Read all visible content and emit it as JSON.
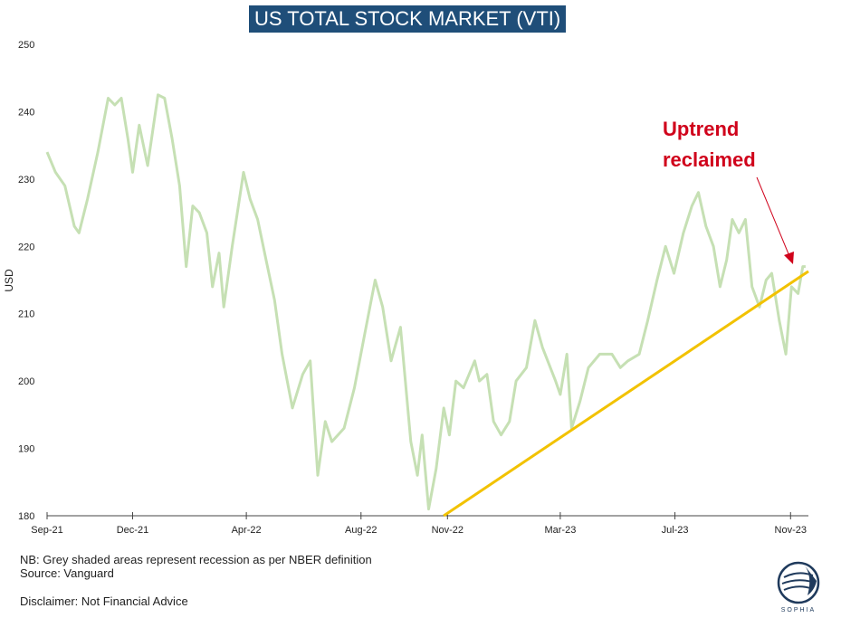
{
  "title": "US TOTAL STOCK MARKET (VTI)",
  "footnotes": {
    "recession_note": "NB: Grey shaded areas represent recession as per NBER definition",
    "source": "Source: Vanguard",
    "disclaimer": "Disclaimer: Not Financial Advice"
  },
  "logo": {
    "icon": "sophia-globe-icon",
    "text": "SOPHIA"
  },
  "colors": {
    "title_bg": "#1f4e79",
    "series": "#c6e0b4",
    "trendline": "#f2c200",
    "annotation": "#d0021b"
  },
  "chart_data": {
    "type": "line",
    "title": "US TOTAL STOCK MARKET (VTI)",
    "ylabel": "USD",
    "xlabel": "",
    "ylim": [
      180,
      250
    ],
    "yticks": [
      180,
      190,
      200,
      210,
      220,
      230,
      240,
      250
    ],
    "xlim": [
      "2021-09-01",
      "2023-11-20"
    ],
    "xticks": [
      {
        "date": "2021-09-01",
        "label": "Sep-21"
      },
      {
        "date": "2021-12-01",
        "label": "Dec-21"
      },
      {
        "date": "2022-04-01",
        "label": "Apr-22"
      },
      {
        "date": "2022-08-01",
        "label": "Aug-22"
      },
      {
        "date": "2022-11-01",
        "label": "Nov-22"
      },
      {
        "date": "2023-03-01",
        "label": "Mar-23"
      },
      {
        "date": "2023-07-01",
        "label": "Jul-23"
      },
      {
        "date": "2023-11-01",
        "label": "Nov-23"
      }
    ],
    "grid": false,
    "series": [
      {
        "values": [
          [
            "2021-09-01",
            234
          ],
          [
            "2021-09-10",
            231
          ],
          [
            "2021-09-20",
            229
          ],
          [
            "2021-09-30",
            223
          ],
          [
            "2021-10-05",
            222
          ],
          [
            "2021-10-14",
            227
          ],
          [
            "2021-10-25",
            234
          ],
          [
            "2021-11-05",
            242
          ],
          [
            "2021-11-12",
            241
          ],
          [
            "2021-11-19",
            242
          ],
          [
            "2021-11-26",
            236
          ],
          [
            "2021-12-01",
            231
          ],
          [
            "2021-12-08",
            238
          ],
          [
            "2021-12-17",
            232
          ],
          [
            "2021-12-28",
            242.5
          ],
          [
            "2022-01-04",
            242
          ],
          [
            "2022-01-12",
            236
          ],
          [
            "2022-01-20",
            229
          ],
          [
            "2022-01-27",
            217
          ],
          [
            "2022-02-03",
            226
          ],
          [
            "2022-02-10",
            225
          ],
          [
            "2022-02-18",
            222
          ],
          [
            "2022-02-24",
            214
          ],
          [
            "2022-03-03",
            219
          ],
          [
            "2022-03-08",
            211
          ],
          [
            "2022-03-17",
            220
          ],
          [
            "2022-03-29",
            231
          ],
          [
            "2022-04-05",
            227
          ],
          [
            "2022-04-13",
            224
          ],
          [
            "2022-04-22",
            218
          ],
          [
            "2022-05-01",
            212
          ],
          [
            "2022-05-09",
            204
          ],
          [
            "2022-05-20",
            196
          ],
          [
            "2022-05-31",
            201
          ],
          [
            "2022-06-08",
            203
          ],
          [
            "2022-06-16",
            186
          ],
          [
            "2022-06-24",
            194
          ],
          [
            "2022-07-01",
            191
          ],
          [
            "2022-07-14",
            193
          ],
          [
            "2022-07-25",
            199
          ],
          [
            "2022-08-05",
            207
          ],
          [
            "2022-08-16",
            215
          ],
          [
            "2022-08-24",
            211
          ],
          [
            "2022-09-02",
            203
          ],
          [
            "2022-09-12",
            208
          ],
          [
            "2022-09-23",
            191
          ],
          [
            "2022-09-30",
            186
          ],
          [
            "2022-10-05",
            192
          ],
          [
            "2022-10-12",
            181
          ],
          [
            "2022-10-20",
            187
          ],
          [
            "2022-10-28",
            196
          ],
          [
            "2022-11-03",
            192
          ],
          [
            "2022-11-10",
            200
          ],
          [
            "2022-11-18",
            199
          ],
          [
            "2022-11-30",
            203
          ],
          [
            "2022-12-05",
            200
          ],
          [
            "2022-12-13",
            201
          ],
          [
            "2022-12-20",
            194
          ],
          [
            "2022-12-28",
            192
          ],
          [
            "2023-01-06",
            194
          ],
          [
            "2023-01-13",
            200
          ],
          [
            "2023-01-24",
            202
          ],
          [
            "2023-02-02",
            209
          ],
          [
            "2023-02-10",
            205
          ],
          [
            "2023-02-24",
            200
          ],
          [
            "2023-03-01",
            198
          ],
          [
            "2023-03-08",
            204
          ],
          [
            "2023-03-13",
            193
          ],
          [
            "2023-03-22",
            197
          ],
          [
            "2023-03-31",
            202
          ],
          [
            "2023-04-12",
            204
          ],
          [
            "2023-04-25",
            204
          ],
          [
            "2023-05-04",
            202
          ],
          [
            "2023-05-12",
            203
          ],
          [
            "2023-05-24",
            204
          ],
          [
            "2023-06-02",
            209
          ],
          [
            "2023-06-12",
            215
          ],
          [
            "2023-06-21",
            220
          ],
          [
            "2023-06-30",
            216
          ],
          [
            "2023-07-10",
            222
          ],
          [
            "2023-07-19",
            226
          ],
          [
            "2023-07-26",
            228
          ],
          [
            "2023-08-03",
            223
          ],
          [
            "2023-08-11",
            220
          ],
          [
            "2023-08-18",
            214
          ],
          [
            "2023-08-25",
            218
          ],
          [
            "2023-08-31",
            224
          ],
          [
            "2023-09-07",
            222
          ],
          [
            "2023-09-14",
            224
          ],
          [
            "2023-09-21",
            214
          ],
          [
            "2023-09-29",
            211
          ],
          [
            "2023-10-06",
            215
          ],
          [
            "2023-10-12",
            216
          ],
          [
            "2023-10-20",
            209
          ],
          [
            "2023-10-27",
            204
          ],
          [
            "2023-11-02",
            214
          ],
          [
            "2023-11-09",
            213
          ],
          [
            "2023-11-14",
            217
          ],
          [
            "2023-11-17",
            217
          ]
        ]
      }
    ],
    "trendline": {
      "start": [
        "2022-10-28",
        180
      ],
      "end": [
        "2023-11-20",
        216.3
      ]
    },
    "annotation": {
      "lines": [
        "Uptrend",
        "reclaimed"
      ]
    }
  }
}
